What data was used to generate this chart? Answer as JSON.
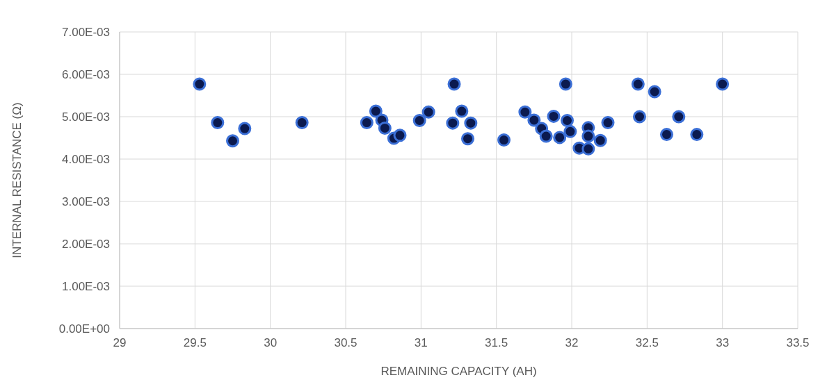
{
  "chart_data": {
    "type": "scatter",
    "xlabel": "REMAINING CAPACITY (AH)",
    "ylabel": "INTERNAL RESISTANCE (Ω)",
    "xlim": [
      29,
      33.5
    ],
    "xticks": [
      29,
      29.5,
      30,
      30.5,
      31,
      31.5,
      32,
      32.5,
      33,
      33.5
    ],
    "ylim": [
      0,
      0.007
    ],
    "yticks": [
      {
        "value": 0,
        "label": "0.00E+00"
      },
      {
        "value": 0.001,
        "label": "1.00E-03"
      },
      {
        "value": 0.002,
        "label": "2.00E-03"
      },
      {
        "value": 0.003,
        "label": "3.00E-03"
      },
      {
        "value": 0.004,
        "label": "4.00E-03"
      },
      {
        "value": 0.005,
        "label": "5.00E-03"
      },
      {
        "value": 0.006,
        "label": "6.00E-03"
      },
      {
        "value": 0.007,
        "label": "7.00E-03"
      }
    ],
    "grid": true,
    "marker": "circle",
    "series": [
      {
        "color": "#0b1a4f",
        "x": [
          29.53,
          29.65,
          29.75,
          29.83,
          30.21,
          30.64,
          30.7,
          30.74,
          30.76,
          30.82,
          30.86,
          30.99,
          31.05,
          31.22,
          31.27,
          31.21,
          31.33,
          31.31,
          31.55,
          31.69,
          31.75,
          31.8,
          31.83,
          31.88,
          31.92,
          31.96,
          31.97,
          31.99,
          32.05,
          32.11,
          32.11,
          32.11,
          32.19,
          32.24,
          32.44,
          32.55,
          32.45,
          32.71,
          32.63,
          32.83,
          33.0
        ],
        "values": [
          0.00577,
          0.00486,
          0.00443,
          0.00472,
          0.00486,
          0.00486,
          0.00513,
          0.00492,
          0.00473,
          0.00449,
          0.00456,
          0.00491,
          0.00511,
          0.00577,
          0.00513,
          0.00485,
          0.00485,
          0.00448,
          0.00445,
          0.00511,
          0.00492,
          0.00472,
          0.00454,
          0.00501,
          0.00451,
          0.00577,
          0.00491,
          0.00465,
          0.00426,
          0.00474,
          0.00454,
          0.00424,
          0.00444,
          0.00486,
          0.00577,
          0.00559,
          0.005,
          0.005,
          0.00458,
          0.00458,
          0.00577
        ]
      }
    ]
  }
}
